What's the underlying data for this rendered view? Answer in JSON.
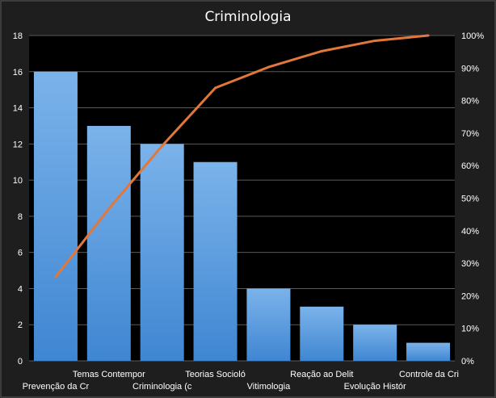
{
  "chart_data": {
    "type": "bar",
    "title": "Criminologia",
    "xlabel": "",
    "ylabel": "",
    "categories": [
      "Prevenção da Cr",
      "Temas Contempor",
      "Criminologia (c",
      "Teorias Socioló",
      "Vitimologia",
      "Reação ao Delit",
      "Evolução Histór",
      "Controle da Cri"
    ],
    "series": [
      {
        "type": "bar",
        "values": [
          16,
          13,
          12,
          11,
          4,
          3,
          2,
          1
        ]
      },
      {
        "type": "line",
        "axis": "secondary",
        "values": [
          25.8,
          46.8,
          66.1,
          83.9,
          90.3,
          95.2,
          98.4,
          100
        ]
      }
    ],
    "ylim": [
      0,
      18
    ],
    "yticks": [
      "0",
      "2",
      "4",
      "6",
      "8",
      "10",
      "12",
      "14",
      "16",
      "18"
    ],
    "y2lim": [
      0,
      100
    ],
    "y2ticks": [
      "0%",
      "10%",
      "20%",
      "30%",
      "40%",
      "50%",
      "60%",
      "70%",
      "80%",
      "90%",
      "100%"
    ],
    "grid": true,
    "legend": "none",
    "colors": {
      "background": "#1e1e1e",
      "plot_background": "#000000",
      "bar": "#4a8fd6",
      "bar_light": "#78b2ea",
      "line": "#e2773a",
      "grid": "#5a5a5a",
      "text": "#ffffff"
    }
  }
}
